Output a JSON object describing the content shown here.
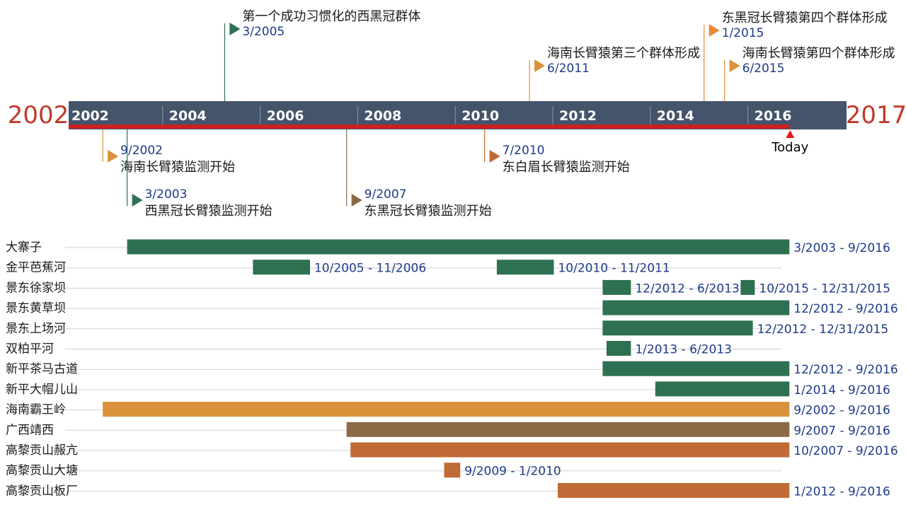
{
  "chart_data": {
    "type": "timeline-gantt",
    "timeline": {
      "start_label": "2002",
      "end_label": "2017",
      "start_year": 2002,
      "end_year": 2017,
      "ticks": [
        "2002",
        "2004",
        "2006",
        "2008",
        "2010",
        "2012",
        "2014",
        "2016"
      ],
      "today_label": "Today",
      "today_value": 2016.75,
      "axis_color": "#44546a",
      "progress_color": "#cc1f1f",
      "milestones": [
        {
          "date": "9/2002",
          "value": 2002.67,
          "label": "海南长臂猿监测开始",
          "side": "below",
          "level": 1,
          "color": "#d9923a"
        },
        {
          "date": "3/2003",
          "value": 2003.17,
          "label": "西黑冠长臂猿监测开始",
          "side": "below",
          "level": 2,
          "color": "#2e7152"
        },
        {
          "date": "9/2007",
          "value": 2007.67,
          "label": "东黑冠长臂猿监测开始",
          "side": "below",
          "level": 2,
          "color": "#8b6a45"
        },
        {
          "date": "7/2010",
          "value": 2010.5,
          "label": "东白眉长臂猿监测开始",
          "side": "below",
          "level": 1,
          "color": "#c06a35"
        },
        {
          "date": "3/2005",
          "value": 2005.17,
          "label": "第一个成功习惯化的西黑冠群体",
          "side": "above",
          "level": 3,
          "color": "#2e7152"
        },
        {
          "date": "6/2011",
          "value": 2011.42,
          "label": "海南长臂猿第三个群体形成",
          "side": "above",
          "level": 1,
          "color": "#d9923a"
        },
        {
          "date": "1/2015",
          "value": 2015.0,
          "label": "东黑冠长臂猿第四个群体形成",
          "side": "above",
          "level": 2,
          "color": "#e8893a"
        },
        {
          "date": "6/2015",
          "value": 2015.42,
          "label": "海南长臂猿第四个群体形成",
          "side": "above",
          "level": 1,
          "color": "#d9923a"
        }
      ]
    },
    "rows": [
      {
        "name": "大寨子",
        "bars": [
          {
            "start": 2003.17,
            "end": 2016.75,
            "label": "3/2003 - 9/2016",
            "color": "#2e7152"
          }
        ]
      },
      {
        "name": "金平芭蕉河",
        "bars": [
          {
            "start": 2005.75,
            "end": 2006.92,
            "label": "10/2005 - 11/2006",
            "color": "#2e7152"
          },
          {
            "start": 2010.75,
            "end": 2011.92,
            "label": "10/2010 - 11/2011",
            "color": "#2e7152"
          }
        ]
      },
      {
        "name": "景东徐家坝",
        "bars": [
          {
            "start": 2012.92,
            "end": 2013.5,
            "label": "12/2012 - 6/2013",
            "color": "#2e7152"
          },
          {
            "start": 2015.75,
            "end": 2016.0,
            "label": "10/2015 - 12/31/2015",
            "color": "#2e7152"
          }
        ]
      },
      {
        "name": "景东黄草坝",
        "bars": [
          {
            "start": 2012.92,
            "end": 2016.75,
            "label": "12/2012 - 9/2016",
            "color": "#2e7152"
          }
        ]
      },
      {
        "name": "景东上场河",
        "bars": [
          {
            "start": 2012.92,
            "end": 2016.0,
            "label": "12/2012 - 12/31/2015",
            "color": "#2e7152"
          }
        ]
      },
      {
        "name": "双柏平河",
        "bars": [
          {
            "start": 2013.0,
            "end": 2013.5,
            "label": "1/2013 - 6/2013",
            "color": "#2e7152"
          }
        ]
      },
      {
        "name": "新平茶马古道",
        "bars": [
          {
            "start": 2012.92,
            "end": 2016.75,
            "label": "12/2012 - 9/2016",
            "color": "#2e7152"
          }
        ]
      },
      {
        "name": "新平大帽儿山",
        "bars": [
          {
            "start": 2014.0,
            "end": 2016.75,
            "label": "1/2014 - 9/2016",
            "color": "#2e7152"
          }
        ]
      },
      {
        "name": "海南霸王岭",
        "bars": [
          {
            "start": 2002.67,
            "end": 2016.75,
            "label": "9/2002 - 9/2016",
            "color": "#d9923a"
          }
        ]
      },
      {
        "name": "广西靖西",
        "bars": [
          {
            "start": 2007.67,
            "end": 2016.75,
            "label": "9/2007 - 9/2016",
            "color": "#8b6a45"
          }
        ]
      },
      {
        "name": "高黎贡山赧亢",
        "bars": [
          {
            "start": 2007.75,
            "end": 2016.75,
            "label": "10/2007 - 9/2016",
            "color": "#c06a35"
          }
        ]
      },
      {
        "name": "高黎贡山大塘",
        "bars": [
          {
            "start": 2009.67,
            "end": 2010.0,
            "label": "9/2009 - 1/2010",
            "color": "#c06a35"
          }
        ]
      },
      {
        "name": "高黎贡山板厂",
        "bars": [
          {
            "start": 2012.0,
            "end": 2016.75,
            "label": "1/2012 - 9/2016",
            "color": "#c06a35"
          }
        ]
      }
    ]
  }
}
